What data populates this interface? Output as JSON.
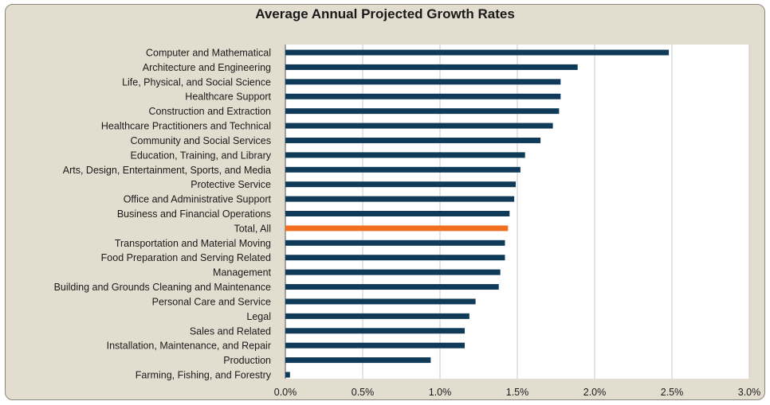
{
  "colors": {
    "bar": "#0f3a58",
    "highlight": "#f26f21",
    "panel": "#e3ddd0",
    "plot": "#ffffff",
    "grid": "#c8c8c8"
  },
  "chart_data": {
    "type": "bar",
    "orientation": "horizontal",
    "title": "Average Annual Projected Growth Rates",
    "xlabel": "",
    "ylabel": "",
    "xlim": [
      0,
      3.0
    ],
    "xticks": [
      "0.0%",
      "0.5%",
      "1.0%",
      "1.5%",
      "2.0%",
      "2.5%",
      "3.0%"
    ],
    "grid": true,
    "highlight_category": "Total, All",
    "categories": [
      "Computer and Mathematical",
      "Architecture and Engineering",
      "Life, Physical, and Social Science",
      "Healthcare Support",
      "Construction and Extraction",
      "Healthcare Practitioners and Technical",
      "Community and Social Services",
      "Education, Training, and Library",
      "Arts, Design, Entertainment, Sports, and Media",
      "Protective Service",
      "Office and Administrative Support",
      "Business and Financial Operations",
      "Total, All",
      "Transportation and Material Moving",
      "Food Preparation and Serving Related",
      "Management",
      "Building and Grounds Cleaning and Maintenance",
      "Personal Care and Service",
      "Legal",
      "Sales and Related",
      "Installation, Maintenance, and Repair",
      "Production",
      "Farming, Fishing, and Forestry"
    ],
    "values": [
      2.48,
      1.89,
      1.78,
      1.78,
      1.77,
      1.73,
      1.65,
      1.55,
      1.52,
      1.49,
      1.48,
      1.45,
      1.44,
      1.42,
      1.42,
      1.39,
      1.38,
      1.23,
      1.19,
      1.16,
      1.16,
      0.94,
      0.03
    ]
  }
}
